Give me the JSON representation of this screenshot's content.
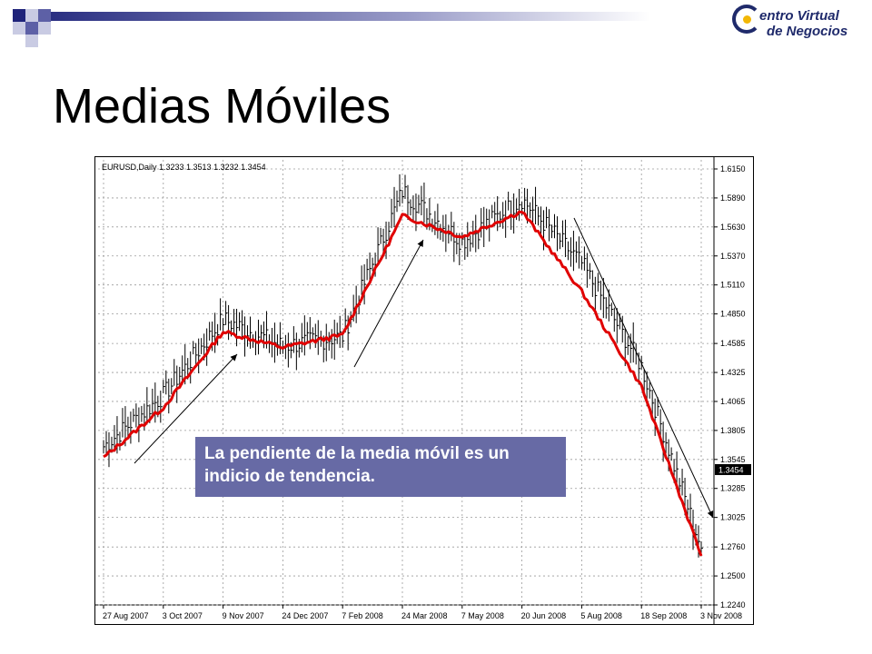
{
  "slide": {
    "title": "Medias Móviles",
    "brand_line1": "entro Virtual",
    "brand_line2": "de Negocios",
    "callout": "La pendiente de la media móvil es un indicio de tendencia."
  },
  "chart_data": {
    "type": "line",
    "header": "EURUSD,Daily  1.3233 1.3513 1.3232 1.3454",
    "x_labels": [
      "27 Aug 2007",
      "3 Oct 2007",
      "9 Nov 2007",
      "24 Dec 2007",
      "7 Feb 2008",
      "24 Mar 2008",
      "7 May 2008",
      "20 Jun 2008",
      "5 Aug 2008",
      "18 Sep 2008",
      "3 Nov 2008"
    ],
    "y_ticks": [
      1.615,
      1.589,
      1.563,
      1.537,
      1.511,
      1.485,
      1.4585,
      1.4325,
      1.4065,
      1.3805,
      1.3545,
      1.3285,
      1.3025,
      1.276,
      1.25,
      1.224
    ],
    "y_tick_labels": [
      "1.6150",
      "1.5890",
      "1.5630",
      "1.5370",
      "1.5110",
      "1.4850",
      "1.4585",
      "1.4325",
      "1.4065",
      "1.3805",
      "1.3545",
      "1.3285",
      "1.3025",
      "1.2760",
      "1.2500",
      "1.2240"
    ],
    "ylim": [
      1.224,
      1.615
    ],
    "current_price_label": "1.3454",
    "current_price": 1.3454,
    "series": [
      {
        "name": "EURUSD",
        "color": "#000000",
        "note": "price polyline approx",
        "points": [
          [
            "27 Aug 2007",
            1.366
          ],
          [
            "3 Oct 2007",
            1.412
          ],
          [
            "9 Nov 2007",
            1.48
          ],
          [
            "24 Dec 2007",
            1.456
          ],
          [
            "7 Feb 2008",
            1.465
          ],
          [
            "24 Mar 2008",
            1.595
          ],
          [
            "7 May 2008",
            1.55
          ],
          [
            "20 Jun 2008",
            1.588
          ],
          [
            "5 Aug 2008",
            1.53
          ],
          [
            "18 Sep 2008",
            1.438
          ],
          [
            "3 Nov 2008",
            1.275
          ]
        ]
      },
      {
        "name": "MA",
        "color": "#e00000",
        "points": [
          [
            "27 Aug 2007",
            1.356
          ],
          [
            "3 Oct 2007",
            1.401
          ],
          [
            "9 Nov 2007",
            1.469
          ],
          [
            "24 Dec 2007",
            1.455
          ],
          [
            "7 Feb 2008",
            1.466
          ],
          [
            "24 Mar 2008",
            1.573
          ],
          [
            "7 May 2008",
            1.554
          ],
          [
            "20 Jun 2008",
            1.577
          ],
          [
            "5 Aug 2008",
            1.505
          ],
          [
            "18 Sep 2008",
            1.42
          ],
          [
            "3 Nov 2008",
            1.268
          ]
        ]
      }
    ],
    "grid": true,
    "colors": {
      "background": "#ffffff",
      "grid": "#9a9a9a",
      "ma": "#e00000",
      "arrows": "#000000",
      "price_box": "#000000"
    }
  }
}
